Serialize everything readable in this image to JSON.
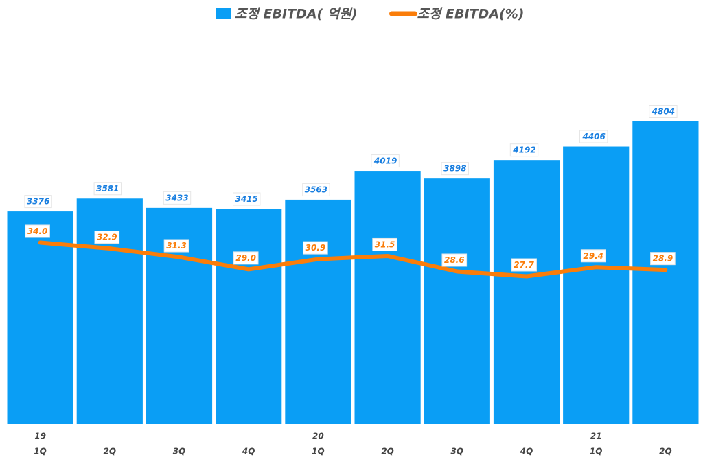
{
  "chart_data": {
    "type": "bar_line",
    "categories": [
      [
        "19",
        "1Q"
      ],
      [
        "2Q"
      ],
      [
        "3Q"
      ],
      [
        "4Q"
      ],
      [
        "20",
        "1Q"
      ],
      [
        "2Q"
      ],
      [
        "3Q"
      ],
      [
        "4Q"
      ],
      [
        "21",
        "1Q"
      ],
      [
        "2Q"
      ]
    ],
    "series": [
      {
        "name": "조정 EBITDA( 억원)",
        "type": "bar",
        "color": "#0a9ef5",
        "values": [
          3376,
          3581,
          3433,
          3415,
          3563,
          4019,
          3898,
          4192,
          4406,
          4804
        ]
      },
      {
        "name": "조정 EBITDA(%)",
        "type": "line",
        "axis": "y2",
        "color": "#fa7d0a",
        "values": [
          34.0,
          32.9,
          31.3,
          29.0,
          30.9,
          31.5,
          28.6,
          27.7,
          29.4,
          28.9
        ],
        "value_labels": [
          "34.0",
          "32.9",
          "31.3",
          "29.0",
          "30.9",
          "31.5",
          "28.6",
          "27.7",
          "29.4",
          "28.9"
        ]
      }
    ],
    "ylim": [
      0,
      5000
    ],
    "y2lim": [
      0,
      59
    ],
    "legend": "top"
  }
}
